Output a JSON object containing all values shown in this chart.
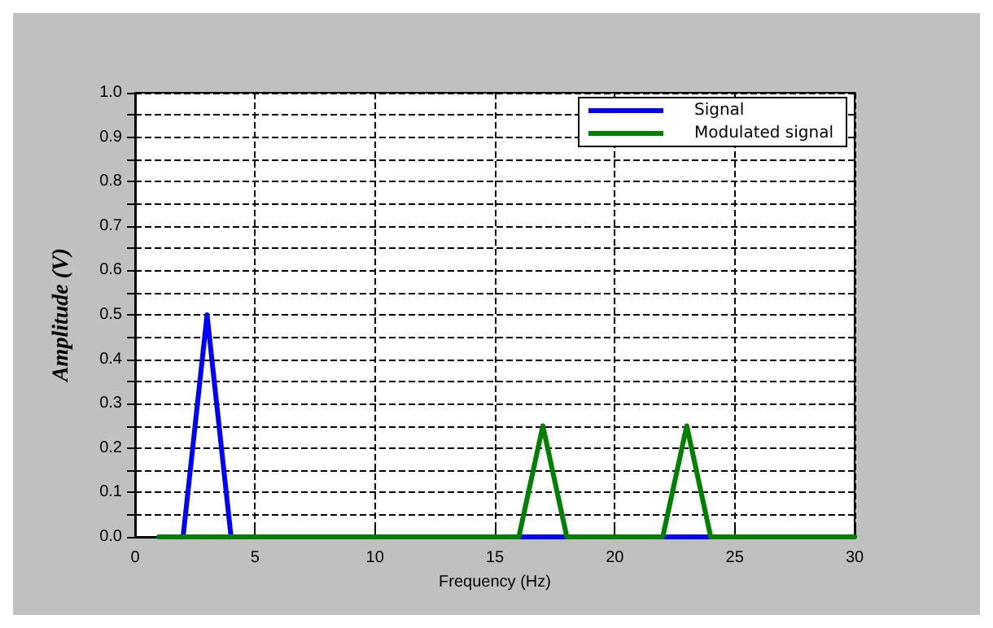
{
  "chart_data": {
    "type": "line",
    "xlabel": "Frequency (Hz)",
    "ylabel": "Amplitude (V)",
    "xlim": [
      0,
      30
    ],
    "xticks": [
      0,
      5,
      10,
      15,
      20,
      25,
      30
    ],
    "ylim": [
      0,
      1
    ],
    "yticks": [
      {
        "value": 0,
        "label": "0.0"
      },
      {
        "value": 0.1,
        "label": "0.1"
      },
      {
        "value": 0.2,
        "label": "0.2"
      },
      {
        "value": 0.3,
        "label": "0.3"
      },
      {
        "value": 0.4,
        "label": "0.4"
      },
      {
        "value": 0.5,
        "label": "0.5"
      },
      {
        "value": 0.6,
        "label": "0.6"
      },
      {
        "value": 0.7,
        "label": "0.7"
      },
      {
        "value": 0.8,
        "label": "0.8"
      },
      {
        "value": 0.9,
        "label": "0.9"
      },
      {
        "value": 1,
        "label": "1.0"
      }
    ],
    "grid": true,
    "legend": "top right",
    "line_style": "solid",
    "marker": "none",
    "series": [
      {
        "name": "Signal",
        "color": "#0000ff",
        "x": [
          1,
          2,
          3,
          4,
          25
        ],
        "values": [
          0,
          0,
          0.5,
          0,
          0
        ]
      },
      {
        "name": "Modulated signal",
        "color": "#008000",
        "x": [
          1,
          16,
          17,
          18,
          22,
          23,
          24,
          30
        ],
        "values": [
          0,
          0,
          0.25,
          0,
          0,
          0.25,
          0,
          0
        ]
      }
    ]
  }
}
